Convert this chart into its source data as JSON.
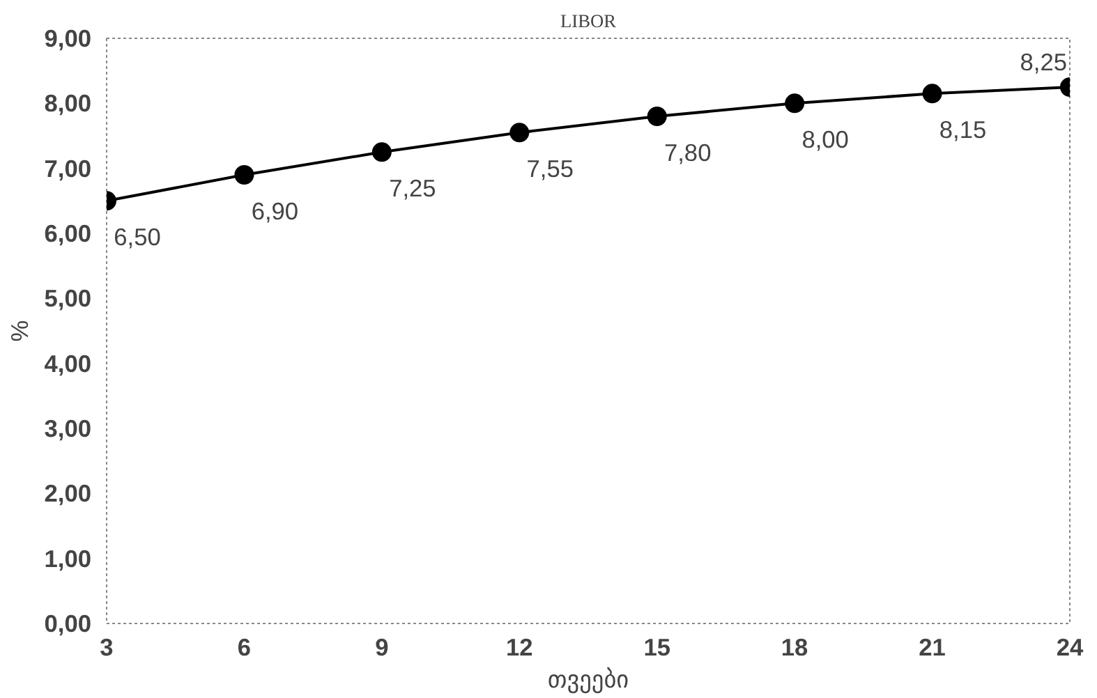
{
  "chart_data": {
    "type": "line",
    "title": "LIBOR",
    "xlabel": "თვეები",
    "ylabel": "%",
    "x": [
      3,
      6,
      9,
      12,
      15,
      18,
      21,
      24
    ],
    "series": [
      {
        "color": "#000000",
        "values": [
          6.5,
          6.9,
          7.25,
          7.55,
          7.8,
          8.0,
          8.15,
          8.25
        ],
        "value_labels": [
          "6,50",
          "6,90",
          "7,25",
          "7,55",
          "7,80",
          "8,00",
          "8,15",
          "8,25"
        ]
      }
    ],
    "xlim": [
      3,
      24
    ],
    "xticks": [
      3,
      6,
      9,
      12,
      15,
      18,
      21,
      24
    ],
    "ylim": [
      0,
      9
    ],
    "yticks": [
      {
        "value": 0,
        "label": "0,00"
      },
      {
        "value": 1,
        "label": "1,00"
      },
      {
        "value": 2,
        "label": "2,00"
      },
      {
        "value": 3,
        "label": "3,00"
      },
      {
        "value": 4,
        "label": "4,00"
      },
      {
        "value": 5,
        "label": "5,00"
      },
      {
        "value": 6,
        "label": "6,00"
      },
      {
        "value": 7,
        "label": "7,00"
      },
      {
        "value": 8,
        "label": "8,00"
      },
      {
        "value": 9,
        "label": "9,00"
      }
    ],
    "grid": false,
    "marker": "circle",
    "line_style": "solid"
  }
}
